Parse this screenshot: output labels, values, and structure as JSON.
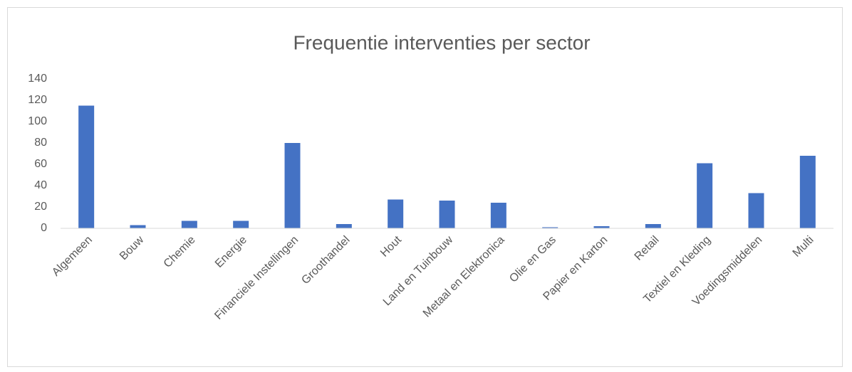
{
  "chart_data": {
    "type": "bar",
    "title": "Frequentie interventies per sector",
    "categories": [
      "Algemeen",
      "Bouw",
      "Chemie",
      "Energie",
      "Financiele Instellingen",
      "Groothandel",
      "Hout",
      "Land en Tuinbouw",
      "Metaal en Elektronica",
      "Olie en Gas",
      "Papier en Karton",
      "Retail",
      "Textiel en Kleding",
      "Voedingsmiddelen",
      "Multi"
    ],
    "values": [
      115,
      3,
      7,
      7,
      80,
      4,
      27,
      26,
      24,
      1,
      2,
      4,
      61,
      33,
      68
    ],
    "color": "#4472c4",
    "ylim": [
      0,
      140
    ],
    "yticks": [
      0,
      20,
      40,
      60,
      80,
      100,
      120,
      140
    ],
    "grid": false
  }
}
